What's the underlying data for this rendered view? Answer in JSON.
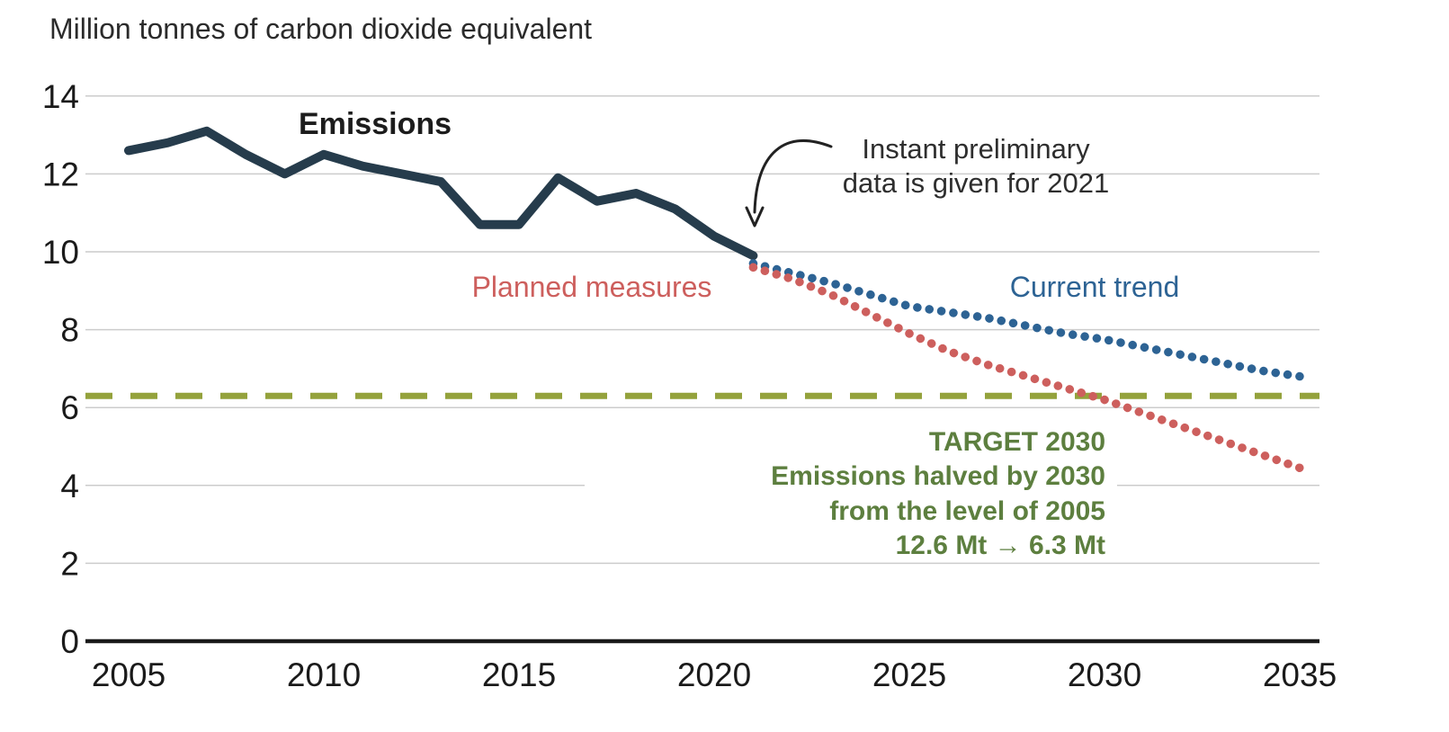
{
  "title": "Million tonnes of carbon dioxide equivalent",
  "colors": {
    "emissions_line": "#263c4c",
    "current_trend": "#2d6394",
    "planned_measures": "#cd5f5d",
    "target_line": "#94a23c",
    "target_text": "#5d7f3f",
    "axis": "#1a1a1a",
    "grid": "#cccccc",
    "annotation_text": "#2e2e2e",
    "title_text": "#2b2b2b",
    "emissions_label": "#1c1c1c"
  },
  "labels": {
    "emissions": "Emissions",
    "planned_measures": "Planned measures",
    "current_trend": "Current trend"
  },
  "annotation": {
    "line1": "Instant preliminary",
    "line2": "data is given for 2021"
  },
  "target_text": {
    "line1": "TARGET 2030",
    "line2": "Emissions halved by 2030",
    "line3": "from the level of 2005",
    "line4": "12.6 Mt → 6.3 Mt"
  },
  "chart_data": {
    "type": "line",
    "title": "Million tonnes of carbon dioxide equivalent",
    "xlabel": "",
    "ylabel": "Million tonnes of carbon dioxide equivalent",
    "xlim": [
      2005,
      2035
    ],
    "ylim": [
      0,
      14
    ],
    "xticks": [
      "2005",
      "2010",
      "2015",
      "2020",
      "2025",
      "2030",
      "2035"
    ],
    "xtick_years": [
      2005,
      2010,
      2015,
      2020,
      2025,
      2030,
      2035
    ],
    "yticks": [
      "0",
      "2",
      "4",
      "6",
      "8",
      "10",
      "12",
      "14"
    ],
    "ytick_values": [
      0,
      2,
      4,
      6,
      8,
      10,
      12,
      14
    ],
    "grid": true,
    "legend_position": "inline-labels",
    "target_line": {
      "label": "TARGET 2030",
      "value": 6.3,
      "style": "dashed"
    },
    "annotation": "Instant preliminary data is given for 2021 (arrow points to 2021 endpoint of Emissions line)",
    "series": [
      {
        "name": "Emissions",
        "style": "solid",
        "x": [
          2005,
          2006,
          2007,
          2008,
          2009,
          2010,
          2011,
          2012,
          2013,
          2014,
          2015,
          2016,
          2017,
          2018,
          2019,
          2020,
          2021
        ],
        "values": [
          12.6,
          12.8,
          13.1,
          12.5,
          12.0,
          12.5,
          12.2,
          12.0,
          11.8,
          10.7,
          10.7,
          11.9,
          11.3,
          11.5,
          11.1,
          10.4,
          9.9
        ]
      },
      {
        "name": "Current trend",
        "style": "dotted",
        "x": [
          2021,
          2022,
          2023,
          2024,
          2025,
          2026,
          2027,
          2028,
          2029,
          2030,
          2031,
          2032,
          2033,
          2034,
          2035
        ],
        "values": [
          9.7,
          9.45,
          9.2,
          8.9,
          8.6,
          8.45,
          8.3,
          8.1,
          7.9,
          7.75,
          7.55,
          7.35,
          7.15,
          6.95,
          6.8
        ]
      },
      {
        "name": "Planned measures",
        "style": "dotted",
        "x": [
          2021,
          2022,
          2023,
          2024,
          2025,
          2026,
          2027,
          2028,
          2029,
          2030,
          2031,
          2032,
          2033,
          2034,
          2035
        ],
        "values": [
          9.6,
          9.3,
          8.9,
          8.4,
          7.9,
          7.45,
          7.1,
          6.8,
          6.5,
          6.2,
          5.85,
          5.5,
          5.15,
          4.8,
          4.45
        ]
      }
    ]
  }
}
